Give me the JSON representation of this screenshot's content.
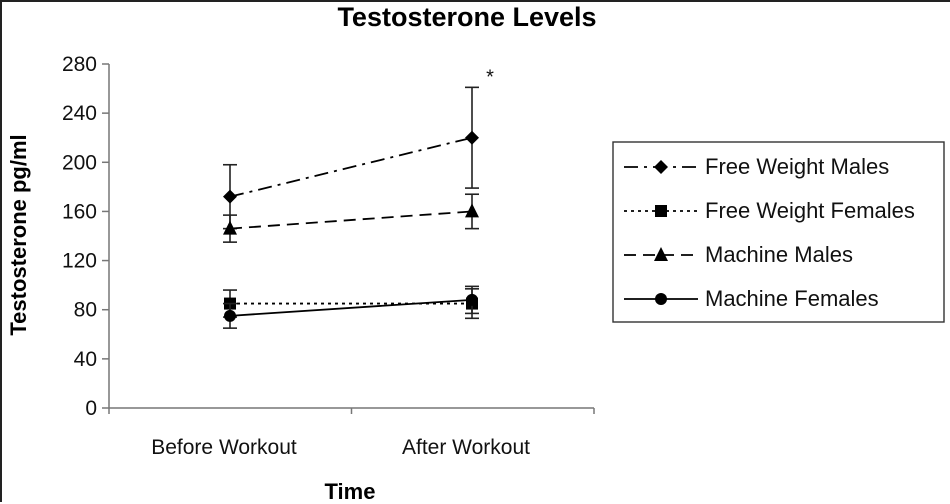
{
  "chart_data": {
    "type": "line",
    "title": "Testosterone Levels",
    "xlabel": "Time",
    "ylabel": "Testosterone pg/ml",
    "categories": [
      "Before Workout",
      "After Workout"
    ],
    "ylim": [
      0,
      280
    ],
    "yticks": [
      0,
      40,
      80,
      120,
      160,
      200,
      240,
      280
    ],
    "grid": false,
    "legend_position": "right",
    "series": [
      {
        "name": "Free Weight Males",
        "values": [
          172,
          220
        ],
        "error": [
          26,
          41
        ],
        "marker": "diamond",
        "line": "dash-dot",
        "color": "#000000"
      },
      {
        "name": "Free Weight Females",
        "values": [
          85,
          85
        ],
        "error": [
          11,
          12
        ],
        "marker": "square",
        "line": "dotted",
        "color": "#000000"
      },
      {
        "name": "Machine Males",
        "values": [
          146,
          160
        ],
        "error": [
          11,
          14
        ],
        "marker": "triangle",
        "line": "dashed",
        "color": "#000000"
      },
      {
        "name": "Machine Females",
        "values": [
          75,
          88
        ],
        "error": [
          10,
          11
        ],
        "marker": "circle",
        "line": "solid",
        "color": "#000000"
      }
    ],
    "annotations": [
      {
        "text": "*",
        "category": "After Workout"
      }
    ]
  }
}
